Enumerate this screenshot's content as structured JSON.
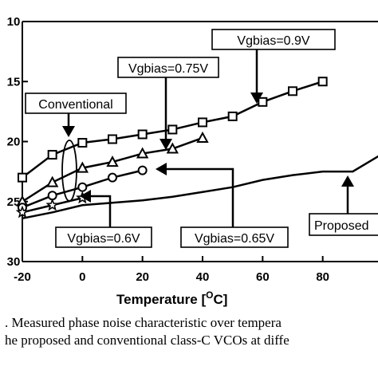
{
  "chart_data": {
    "type": "line",
    "xlabel": "Temperature [",
    "xlabel_unit": "C]",
    "xlabel_sup": "O",
    "x_ticks": [
      "-20",
      "0",
      "20",
      "40",
      "60",
      "80"
    ],
    "y_ticks": [
      "10",
      "15",
      "20",
      "25",
      "30"
    ],
    "xlim": [
      -20,
      100
    ],
    "ylim": [
      30,
      10
    ],
    "y_inverted": true,
    "grid": false,
    "series": [
      {
        "name": "Vgbias=0.9V",
        "marker": "square",
        "x": [
          -20,
          -10,
          0,
          10,
          20,
          30,
          40,
          50,
          60,
          70,
          80
        ],
        "y": [
          -23.0,
          -21.1,
          -20.1,
          -19.8,
          -19.4,
          -19.0,
          -18.4,
          -17.9,
          -16.7,
          -15.8,
          -15.0
        ]
      },
      {
        "name": "Vgbias=0.75V",
        "marker": "triangle",
        "x": [
          -20,
          -10,
          0,
          10,
          20,
          30,
          40
        ],
        "y": [
          -25.0,
          -23.4,
          -22.2,
          -21.7,
          -21.0,
          -20.6,
          -19.7
        ]
      },
      {
        "name": "Vgbias=0.65V",
        "marker": "circle",
        "x": [
          -20,
          -10,
          0,
          10,
          20
        ],
        "y": [
          -25.5,
          -24.5,
          -23.8,
          -23.0,
          -22.4
        ]
      },
      {
        "name": "Vgbias=0.6V",
        "marker": "star",
        "x": [
          -20,
          -10,
          0
        ],
        "y": [
          -25.9,
          -25.3,
          -24.7
        ]
      },
      {
        "name": "Proposed",
        "marker": "none",
        "x": [
          -20,
          -10,
          0,
          10,
          20,
          30,
          40,
          50,
          60,
          70,
          80,
          90,
          100
        ],
        "y": [
          -26.4,
          -25.9,
          -25.3,
          -25.1,
          -24.9,
          -24.6,
          -24.2,
          -23.8,
          -23.2,
          -22.8,
          -22.5,
          -22.5,
          -21.0
        ]
      }
    ],
    "annotations": [
      {
        "text": "Vgbias=0.9V"
      },
      {
        "text": "Vgbias=0.75V"
      },
      {
        "text": "Conventional"
      },
      {
        "text": "Vgbias=0.6V"
      },
      {
        "text": "Vgbias=0.65V"
      },
      {
        "text": "Proposed"
      }
    ]
  },
  "caption": {
    "line1": ". Measured phase noise characteristic over tempera",
    "line2": "he proposed and conventional class-C VCOs at diffe"
  }
}
